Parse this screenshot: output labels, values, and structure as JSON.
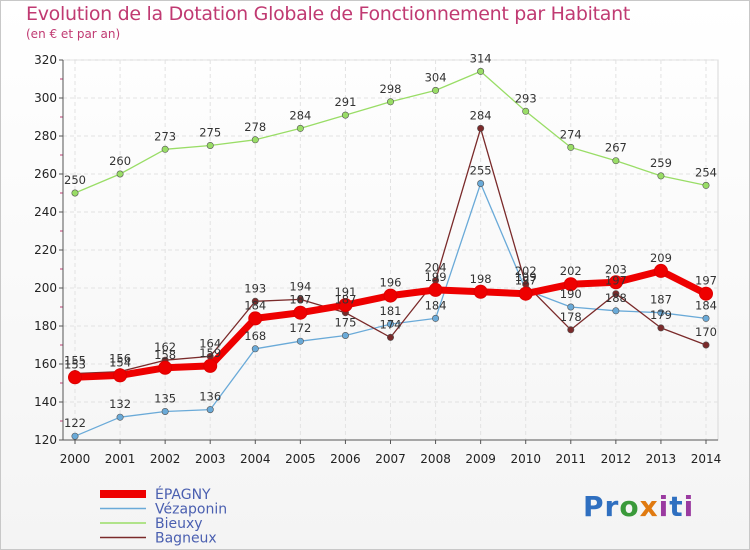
{
  "title": "Evolution de la Dotation Globale de Fonctionnement par Habitant",
  "subtitle": "(en € et par an)",
  "logo": "Proxiti",
  "chart_data": {
    "type": "line",
    "title": "Evolution de la Dotation Globale de Fonctionnement par Habitant",
    "subtitle": "(en € et par an)",
    "xlabel": "",
    "ylabel": "",
    "ylim": [
      120,
      320
    ],
    "yticks": [
      120,
      140,
      160,
      180,
      200,
      220,
      240,
      260,
      280,
      300,
      320
    ],
    "categories": [
      "2000",
      "2001",
      "2002",
      "2003",
      "2004",
      "2005",
      "2006",
      "2007",
      "2008",
      "2009",
      "2010",
      "2011",
      "2012",
      "2013",
      "2014"
    ],
    "grid": true,
    "legend_position": "bottom-left",
    "series": [
      {
        "name": "ÉPAGNY",
        "color": "#ee0000",
        "values": [
          153,
          154,
          158,
          159,
          184,
          187,
          191,
          196,
          199,
          198,
          197,
          202,
          203,
          209,
          197
        ]
      },
      {
        "name": "Vézaponin",
        "color": "#6aaad8",
        "values": [
          122,
          132,
          135,
          136,
          168,
          172,
          175,
          181,
          184,
          255,
          199,
          190,
          188,
          187,
          184
        ]
      },
      {
        "name": "Bieuxy",
        "color": "#99dd66",
        "values": [
          250,
          260,
          273,
          275,
          278,
          284,
          291,
          298,
          304,
          314,
          293,
          274,
          267,
          259,
          254
        ]
      },
      {
        "name": "Bagneux",
        "color": "#7a2a2a",
        "values": [
          155,
          156,
          162,
          164,
          193,
          194,
          187,
          174,
          204,
          284,
          202,
          178,
          197,
          179,
          170
        ]
      }
    ]
  }
}
